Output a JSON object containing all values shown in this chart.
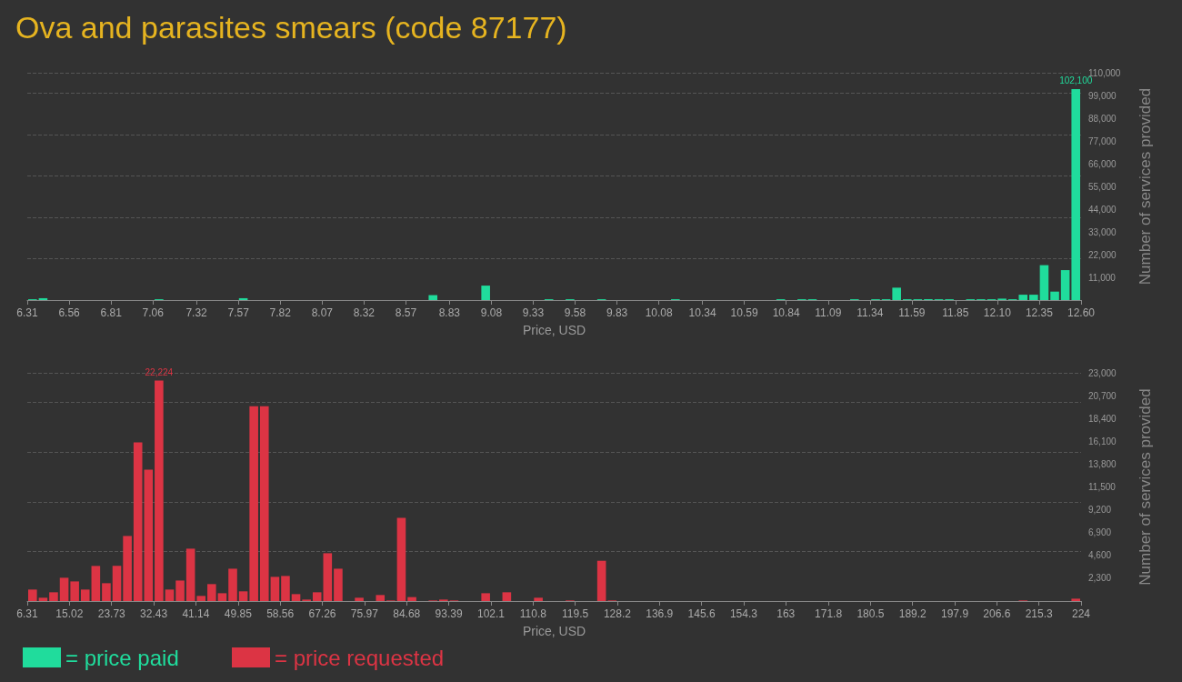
{
  "chart_data": [
    {
      "type": "histogram",
      "title": "Ova and parasites smears (code 87177)",
      "xlabel": "Price, USD",
      "ylabel": "Number of services provided",
      "legend": "bottom left",
      "grid": "y",
      "bins": [
        6.31,
        6.3729,
        6.4358,
        6.4987,
        6.5616,
        6.6245,
        6.6874,
        6.7503,
        6.8132,
        6.8761,
        6.939,
        7.0019,
        7.0648,
        7.1277,
        7.1906,
        7.2535,
        7.3164,
        7.3793,
        7.4422,
        7.5051,
        7.568,
        7.6309,
        7.6938,
        7.7567,
        7.8196,
        7.8825,
        7.9454,
        8.0083,
        8.0712,
        8.1341,
        8.197,
        8.2599,
        8.3228,
        8.3857,
        8.4486,
        8.5115,
        8.5744,
        8.6373,
        8.7002,
        8.7631,
        8.826,
        8.8889,
        8.9518,
        9.0147,
        9.0776,
        9.1405,
        9.2034,
        9.2663,
        9.3292,
        9.3921,
        9.455,
        9.5179,
        9.5808,
        9.6437,
        9.7066,
        9.7695,
        9.8324,
        9.8953,
        9.9582,
        10.0211,
        10.084,
        10.1469,
        10.2098,
        10.2727,
        10.3356,
        10.3985,
        10.4614,
        10.5243,
        10.5872,
        10.6501,
        10.713,
        10.7759,
        10.8388,
        10.9017,
        10.9646,
        11.0275,
        11.0904,
        11.1533,
        11.2162,
        11.2791,
        11.342,
        11.4049,
        11.4678,
        11.5307,
        11.5936,
        11.6565,
        11.7194,
        11.7823,
        11.8452,
        11.9081,
        11.971,
        12.0339,
        12.0968,
        12.1597,
        12.2226,
        12.2855,
        12.3484,
        12.4113,
        12.4742,
        12.5371,
        12.6
      ],
      "series": [
        {
          "name": "= price paid",
          "color": "#20dc9c",
          "values": [
            400,
            900,
            0,
            0,
            0,
            0,
            0,
            0,
            0,
            0,
            0,
            0,
            400,
            0,
            0,
            0,
            0,
            0,
            0,
            0,
            900,
            0,
            0,
            0,
            0,
            0,
            0,
            0,
            0,
            0,
            0,
            0,
            0,
            0,
            0,
            0,
            0,
            0,
            2400,
            0,
            0,
            0,
            0,
            7000,
            0,
            0,
            0,
            0,
            0,
            400,
            0,
            400,
            0,
            0,
            400,
            0,
            0,
            0,
            0,
            0,
            0,
            400,
            0,
            0,
            0,
            0,
            0,
            0,
            0,
            0,
            0,
            400,
            0,
            400,
            400,
            0,
            0,
            0,
            400,
            0,
            400,
            400,
            6000,
            400,
            400,
            400,
            400,
            400,
            0,
            400,
            400,
            400,
            700,
            400,
            2600,
            2600,
            16900,
            4100,
            14500,
            102100
          ],
          "value_labels": [
            null,
            null,
            null,
            null,
            null,
            null,
            null,
            null,
            null,
            null,
            null,
            null,
            null,
            null,
            null,
            null,
            null,
            null,
            null,
            null,
            null,
            null,
            null,
            null,
            null,
            null,
            null,
            null,
            null,
            null,
            null,
            null,
            null,
            null,
            null,
            null,
            null,
            null,
            null,
            null,
            null,
            null,
            null,
            null,
            null,
            null,
            null,
            null,
            null,
            null,
            null,
            null,
            null,
            null,
            null,
            null,
            null,
            null,
            null,
            null,
            null,
            null,
            null,
            null,
            null,
            null,
            null,
            null,
            null,
            null,
            null,
            null,
            null,
            null,
            null,
            null,
            null,
            null,
            null,
            null,
            null,
            null,
            null,
            null,
            null,
            null,
            null,
            null,
            null,
            null,
            null,
            null,
            null,
            null,
            null,
            null,
            null,
            null,
            null,
            "102,100"
          ]
        }
      ],
      "xlim": [
        6.31,
        12.6
      ],
      "xticks": [
        6.31,
        6.56,
        6.81,
        7.06,
        7.32,
        7.57,
        7.82,
        8.07,
        8.32,
        8.57,
        8.83,
        9.08,
        9.33,
        9.58,
        9.83,
        10.08,
        10.34,
        10.59,
        10.84,
        11.09,
        11.34,
        11.59,
        11.85,
        {
          "value": 12.1,
          "label": "12.10"
        },
        12.35,
        {
          "value": 12.6,
          "label": "12.60"
        }
      ],
      "ylim": [
        0,
        110000
      ],
      "yticks": [
        {
          "value": 11000,
          "label": "11,000"
        },
        {
          "value": 22000,
          "label": "22,000"
        },
        {
          "value": 33000,
          "label": "33,000"
        },
        {
          "value": 44000,
          "label": "44,000"
        },
        {
          "value": 55000,
          "label": "55,000"
        },
        {
          "value": 66000,
          "label": "66,000"
        },
        {
          "value": 77000,
          "label": "77,000"
        },
        {
          "value": 88000,
          "label": "88,000"
        },
        {
          "value": 99000,
          "label": "99,000"
        },
        {
          "value": 110000,
          "label": "110,000"
        }
      ]
    },
    {
      "type": "histogram",
      "xlabel": "Price, USD",
      "ylabel": "Number of services provided",
      "legend": "bottom left",
      "grid": "y",
      "bins": [
        6.31,
        8.49,
        10.66,
        12.84,
        15.02,
        17.19,
        19.37,
        21.55,
        23.73,
        25.9,
        28.08,
        30.26,
        32.43,
        34.61,
        36.79,
        38.96,
        41.14,
        43.32,
        45.49,
        47.67,
        49.85,
        52.02,
        54.2,
        56.38,
        58.56,
        60.73,
        62.91,
        65.09,
        67.26,
        69.44,
        71.62,
        73.79,
        75.97,
        78.15,
        80.32,
        82.5,
        84.68,
        86.86,
        89.03,
        91.21,
        93.39,
        95.56,
        97.74,
        99.92,
        102.09,
        104.27,
        106.45,
        108.62,
        110.8,
        112.98,
        115.16,
        117.33,
        119.51,
        121.69,
        123.86,
        126.04,
        128.22,
        130.39,
        132.57,
        134.75,
        136.92,
        139.1,
        141.28,
        143.45,
        145.63,
        147.81,
        149.99,
        152.16,
        154.34,
        156.52,
        158.69,
        160.87,
        163.05,
        165.22,
        167.4,
        169.58,
        171.75,
        173.93,
        176.11,
        178.29,
        180.46,
        182.64,
        184.82,
        186.99,
        189.17,
        191.35,
        193.52,
        195.7,
        197.88,
        200.05,
        202.23,
        204.41,
        206.59,
        208.76,
        210.94,
        213.12,
        215.29,
        217.47,
        219.65,
        221.82,
        224
      ],
      "series": [
        {
          "name": "= price requested",
          "color": "#dc3444",
          "values": [
            1160,
            335,
            885,
            2350,
            1980,
            1160,
            3540,
            1800,
            3540,
            6560,
            15980,
            13240,
            22224,
            1160,
            2070,
            5280,
            520,
            1710,
            790,
            3260,
            980,
            19640,
            19640,
            2440,
            2530,
            700,
            150,
            885,
            4820,
            3260,
            0,
            335,
            0,
            610,
            60,
            8390,
            400,
            0,
            60,
            150,
            60,
            0,
            0,
            790,
            0,
            885,
            0,
            0,
            335,
            0,
            0,
            60,
            0,
            0,
            4060,
            60,
            0,
            0,
            0,
            0,
            0,
            0,
            0,
            0,
            0,
            0,
            0,
            0,
            0,
            0,
            0,
            0,
            0,
            0,
            0,
            0,
            0,
            0,
            0,
            0,
            0,
            0,
            0,
            0,
            0,
            0,
            0,
            0,
            0,
            0,
            0,
            0,
            0,
            0,
            60,
            0,
            0,
            0,
            0,
            240
          ],
          "value_labels": [
            null,
            null,
            null,
            null,
            null,
            null,
            null,
            null,
            null,
            null,
            null,
            null,
            "22,224",
            null,
            null,
            null,
            null,
            null,
            null,
            null,
            null,
            null,
            null,
            null,
            null,
            null,
            null,
            null,
            null,
            null,
            null,
            null,
            null,
            null,
            null,
            null,
            null,
            null,
            null,
            null,
            null,
            null,
            null,
            null,
            null,
            null,
            null,
            null,
            null,
            null,
            null,
            null,
            null,
            null,
            null,
            null,
            null,
            null,
            null,
            null,
            null,
            null,
            null,
            null,
            null,
            null,
            null,
            null,
            null,
            null,
            null,
            null,
            null,
            null,
            null,
            null,
            null,
            null,
            null,
            null,
            null,
            null,
            null,
            null,
            null,
            null,
            null,
            null,
            null,
            null,
            null,
            null,
            null,
            null,
            null,
            null,
            null,
            null,
            null,
            null
          ]
        }
      ],
      "xlim": [
        6.31,
        224
      ],
      "xticks": [
        6.31,
        15.02,
        23.73,
        32.43,
        41.14,
        49.85,
        58.56,
        67.26,
        75.97,
        84.68,
        93.39,
        102.1,
        110.8,
        119.5,
        128.2,
        136.9,
        145.6,
        154.3,
        163,
        171.8,
        180.5,
        189.2,
        197.9,
        206.6,
        215.3,
        224
      ],
      "ylim": [
        0,
        23000
      ],
      "yticks": [
        {
          "value": 2300,
          "label": "2,300"
        },
        {
          "value": 4600,
          "label": "4,600"
        },
        {
          "value": 6900,
          "label": "6,900"
        },
        {
          "value": 9200,
          "label": "9,200"
        },
        {
          "value": 11500,
          "label": "11,500"
        },
        {
          "value": 13800,
          "label": "13,800"
        },
        {
          "value": 16100,
          "label": "16,100"
        },
        {
          "value": 18400,
          "label": "18,400"
        },
        {
          "value": 20700,
          "label": "20,700"
        },
        {
          "value": 23000,
          "label": "23,000"
        }
      ]
    }
  ]
}
